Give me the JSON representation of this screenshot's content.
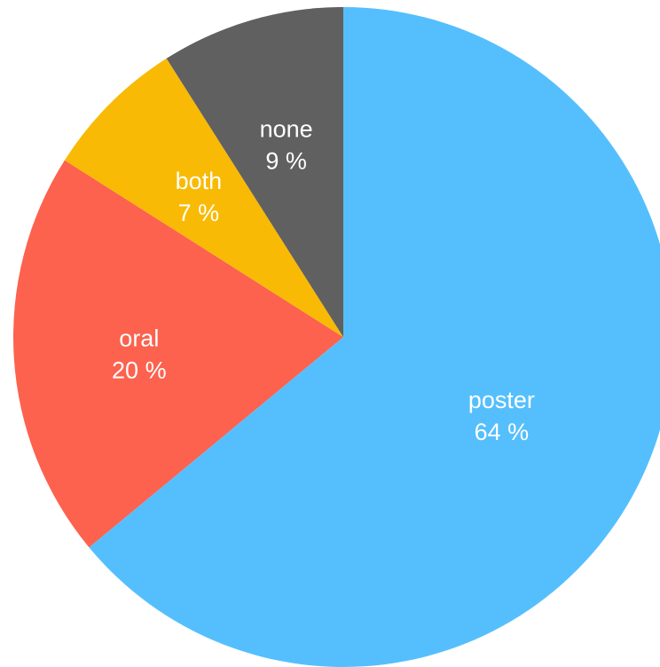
{
  "chart_data": {
    "type": "pie",
    "slices": [
      {
        "name": "poster",
        "value": 64,
        "label": "poster",
        "value_label": "64 %",
        "color": "#55BFFD"
      },
      {
        "name": "oral",
        "value": 20,
        "label": "oral",
        "value_label": "20 %",
        "color": "#FC624E"
      },
      {
        "name": "both",
        "value": 7,
        "label": "both",
        "value_label": "7 %",
        "color": "#F8BA05"
      },
      {
        "name": "none",
        "value": 9,
        "label": "none",
        "value_label": "9 %",
        "color": "#606060"
      }
    ],
    "start_angle_deg": 0,
    "direction": "clockwise from 12 o'clock"
  }
}
